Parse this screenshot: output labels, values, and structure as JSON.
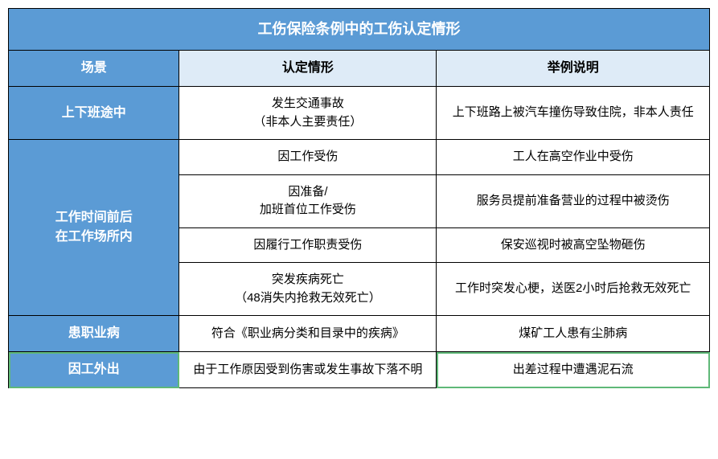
{
  "colors": {
    "title_bg": "#5b9bd5",
    "title_color": "#ffffff",
    "scene_header_bg": "#5b9bd5",
    "scene_header_color": "#ffffff",
    "rest_header_bg": "#deebf7",
    "rest_header_color": "#000000",
    "scene_cell_bg": "#5b9bd5",
    "scene_cell_color": "#ffffff",
    "content_bg": "#ffffff",
    "content_color": "#000000",
    "border_color": "#000000",
    "highlight_border": "#5fb878"
  },
  "title": "工伤保险条例中的工伤认定情形",
  "headers": {
    "scene": "场景",
    "situation": "认定情形",
    "example": "举例说明"
  },
  "sections": [
    {
      "scene": "上下班途中",
      "rows": [
        {
          "situation": "发生交通事故\n（非本人主要责任）",
          "example": "上下班路上被汽车撞伤导致住院，非本人责任"
        }
      ]
    },
    {
      "scene": "工作时间前后\n在工作场所内",
      "rows": [
        {
          "situation": "因工作受伤",
          "example": "工人在高空作业中受伤"
        },
        {
          "situation": "因准备/\n加班首位工作受伤",
          "example": "服务员提前准备营业的过程中被烫伤"
        },
        {
          "situation": "因履行工作职责受伤",
          "example": "保安巡视时被高空坠物砸伤"
        },
        {
          "situation": "突发疾病死亡\n（48消失内抢救无效死亡）",
          "example": "工作时突发心梗，送医2小时后抢救无效死亡"
        }
      ]
    },
    {
      "scene": "患职业病",
      "rows": [
        {
          "situation": "符合《职业病分类和目录中的疾病》",
          "example": "煤矿工人患有尘肺病"
        }
      ]
    },
    {
      "scene": "因工外出",
      "highlight": true,
      "rows": [
        {
          "situation": "由于工作原因受到伤害或发生事故下落不明",
          "example": "出差过程中遭遇泥石流"
        }
      ]
    }
  ]
}
